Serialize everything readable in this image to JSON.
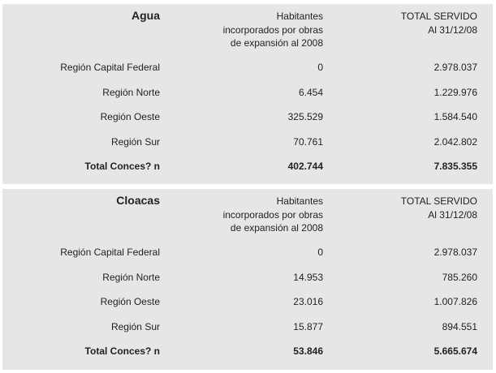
{
  "tables": [
    {
      "title": "Agua",
      "headers": [
        [
          "Habitantes",
          "incorporados por obras",
          "de expansión al 2008"
        ],
        [
          "TOTAL SERVIDO",
          "Al 31/12/08"
        ]
      ],
      "rows": [
        [
          "Región Capital Federal",
          "0",
          "2.978.037"
        ],
        [
          "Región Norte",
          "6.454",
          "1.229.976"
        ],
        [
          "Región Oeste",
          "325.529",
          "1.584.540"
        ],
        [
          "Región Sur",
          "70.761",
          "2.042.802"
        ]
      ],
      "total": [
        "Total Conces? n",
        "402.744",
        "7.835.355"
      ]
    },
    {
      "title": "Cloacas",
      "headers": [
        [
          "Habitantes",
          "incorporados por obras",
          "de expansión al 2008"
        ],
        [
          "TOTAL SERVIDO",
          "Al 31/12/08"
        ]
      ],
      "rows": [
        [
          "Región Capital Federal",
          "0",
          "2.978.037"
        ],
        [
          "Región Norte",
          "14.953",
          "785.260"
        ],
        [
          "Región Oeste",
          "23.016",
          "1.007.826"
        ],
        [
          "Región Sur",
          "15.877",
          "894.551"
        ]
      ],
      "total": [
        "Total Conces? n",
        "53.846",
        "5.665.674"
      ]
    }
  ]
}
